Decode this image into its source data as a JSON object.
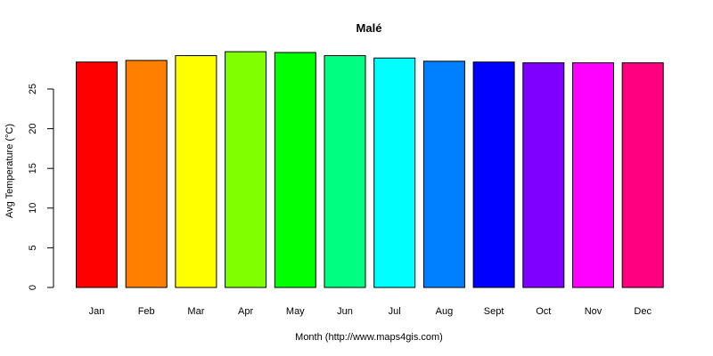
{
  "chart_data": {
    "type": "bar",
    "title": "Malé",
    "xlabel": "Month (http://www.maps4gis.com)",
    "ylabel": "Avg Temperature (°C)",
    "categories": [
      "Jan",
      "Feb",
      "Mar",
      "Apr",
      "May",
      "Jun",
      "Jul",
      "Aug",
      "Sept",
      "Oct",
      "Nov",
      "Dec"
    ],
    "values": [
      28.4,
      28.6,
      29.2,
      29.7,
      29.6,
      29.2,
      28.9,
      28.5,
      28.4,
      28.3,
      28.3,
      28.3
    ],
    "colors": [
      "#FF0000",
      "#FF8000",
      "#FFFF00",
      "#80FF00",
      "#00FF00",
      "#00FF80",
      "#00FFFF",
      "#0080FF",
      "#0000FF",
      "#8000FF",
      "#FF00FF",
      "#FF0080"
    ],
    "ylim": [
      0,
      30
    ],
    "yticks": [
      0,
      5,
      10,
      15,
      20,
      25
    ],
    "grid": false,
    "legend": "none"
  }
}
